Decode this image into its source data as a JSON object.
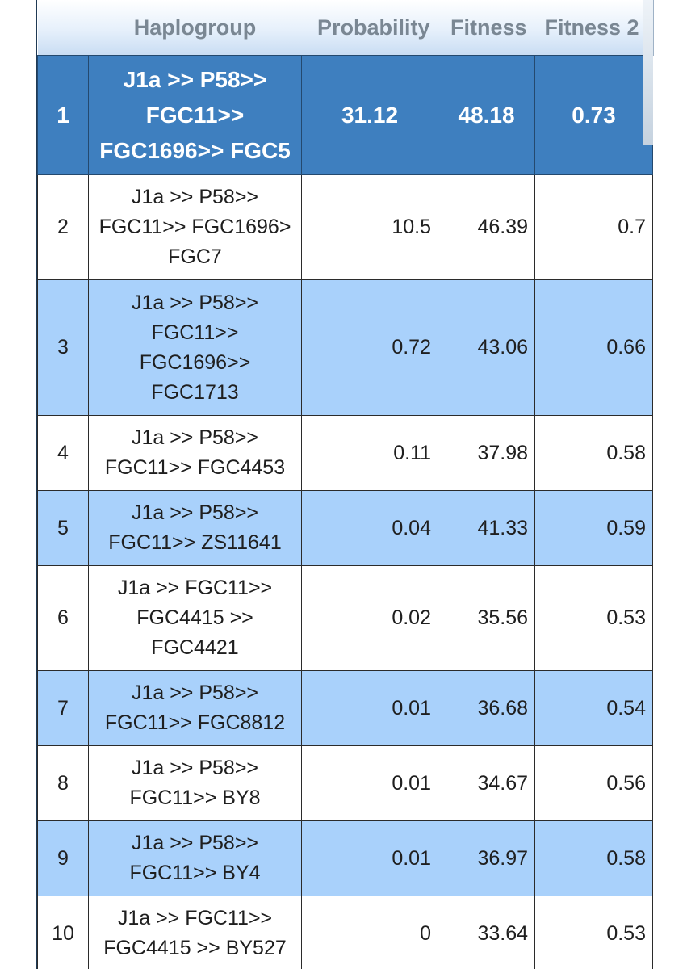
{
  "table": {
    "headers": [
      "",
      "Haplogroup",
      "Probability",
      "Fitness",
      "Fitness 2"
    ],
    "rows": [
      {
        "rank": "1",
        "haplogroup": [
          "J1a >> P58>>",
          "FGC11>>",
          "FGC1696>> FGC5"
        ],
        "probability": "31.12",
        "fitness": "48.18",
        "fitness2": "0.73"
      },
      {
        "rank": "2",
        "haplogroup": [
          "J1a >> P58>>",
          "FGC11>> FGC1696>",
          "FGC7"
        ],
        "probability": "10.5",
        "fitness": "46.39",
        "fitness2": "0.7"
      },
      {
        "rank": "3",
        "haplogroup": [
          "J1a >> P58>>",
          "FGC11>>",
          "FGC1696>>",
          "FGC1713"
        ],
        "probability": "0.72",
        "fitness": "43.06",
        "fitness2": "0.66"
      },
      {
        "rank": "4",
        "haplogroup": [
          "J1a >> P58>>",
          "FGC11>> FGC4453"
        ],
        "probability": "0.11",
        "fitness": "37.98",
        "fitness2": "0.58"
      },
      {
        "rank": "5",
        "haplogroup": [
          "J1a >> P58>>",
          "FGC11>> ZS11641"
        ],
        "probability": "0.04",
        "fitness": "41.33",
        "fitness2": "0.59"
      },
      {
        "rank": "6",
        "haplogroup": [
          "J1a >> FGC11>>",
          "FGC4415 >>",
          "FGC4421"
        ],
        "probability": "0.02",
        "fitness": "35.56",
        "fitness2": "0.53"
      },
      {
        "rank": "7",
        "haplogroup": [
          "J1a >> P58>>",
          "FGC11>> FGC8812"
        ],
        "probability": "0.01",
        "fitness": "36.68",
        "fitness2": "0.54"
      },
      {
        "rank": "8",
        "haplogroup": [
          "J1a >> P58>>",
          "FGC11>> BY8"
        ],
        "probability": "0.01",
        "fitness": "34.67",
        "fitness2": "0.56"
      },
      {
        "rank": "9",
        "haplogroup": [
          "J1a >> P58>>",
          "FGC11>> BY4"
        ],
        "probability": "0.01",
        "fitness": "36.97",
        "fitness2": "0.58"
      },
      {
        "rank": "10",
        "haplogroup": [
          "J1a >> FGC11>>",
          "FGC4415 >> BY527"
        ],
        "probability": "0",
        "fitness": "33.64",
        "fitness2": "0.53"
      }
    ]
  },
  "colors": {
    "header_text": "#7a8793",
    "top_row_bg": "#3e7fbf",
    "alt_row_bg": "#a9d1fb",
    "plain_row_bg": "#ffffff"
  }
}
